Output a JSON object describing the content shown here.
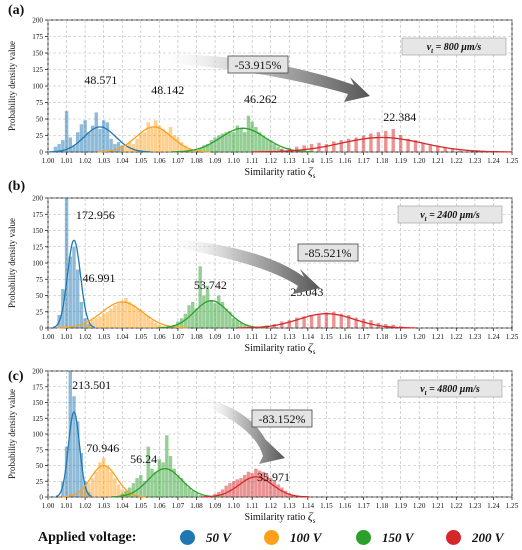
{
  "legend": {
    "title": "Applied voltage:",
    "items": [
      {
        "label": "50 V",
        "color": "#1f77b4"
      },
      {
        "label": "100 V",
        "color": "#ff9f1c"
      },
      {
        "label": "150 V",
        "color": "#2ca02c"
      },
      {
        "label": "200 V",
        "color": "#d62728"
      }
    ]
  },
  "chart_data": [
    {
      "type": "bar",
      "panel_label": "(a)",
      "speed_label": "v_t = 800 μm/s",
      "speed_main": "v",
      "speed_sub": "t",
      "speed_rest": " = 800 μm/s",
      "xlabel": "Similarity ratio ζ_s",
      "xlabel_main": "Similarity ratio ",
      "xlabel_symbol": "ζ",
      "xlabel_sub": "s",
      "ylabel": "Probability density value",
      "xlim": [
        1.0,
        1.25
      ],
      "ylim": [
        0,
        200
      ],
      "grid": true,
      "xticks": [
        "1.00",
        "1.01",
        "1.02",
        "1.03",
        "1.04",
        "1.05",
        "1.06",
        "1.07",
        "1.08",
        "1.09",
        "1.10",
        "1.11",
        "1.12",
        "1.13",
        "1.14",
        "1.15",
        "1.16",
        "1.17",
        "1.18",
        "1.19",
        "1.20",
        "1.21",
        "1.22",
        "1.23",
        "1.24",
        "1.25"
      ],
      "yticks": [
        "0",
        "25",
        "50",
        "75",
        "100",
        "125",
        "150",
        "175",
        "200"
      ],
      "arrow_label": "-53.915%",
      "series": [
        {
          "color": "#1f77b4",
          "peak_label": "48.571",
          "peak_value": 48.571,
          "center": 1.028,
          "sigma": 0.0085,
          "curve_peak": 38,
          "bins": [
            1.004,
            1.006,
            1.008,
            1.01,
            1.012,
            1.014,
            1.016,
            1.018,
            1.02,
            1.022,
            1.024,
            1.026,
            1.028,
            1.03,
            1.032,
            1.034,
            1.036,
            1.038,
            1.04
          ],
          "values": [
            8,
            12,
            18,
            62,
            22,
            10,
            30,
            42,
            48,
            30,
            40,
            60,
            35,
            48,
            45,
            20,
            12,
            15,
            10
          ]
        },
        {
          "color": "#ff9f1c",
          "peak_label": "48.142",
          "peak_value": 48.142,
          "center": 1.057,
          "sigma": 0.0095,
          "curve_peak": 38,
          "bins": [
            1.04,
            1.042,
            1.044,
            1.046,
            1.048,
            1.05,
            1.052,
            1.054,
            1.056,
            1.058,
            1.06,
            1.062,
            1.064,
            1.066,
            1.068,
            1.07,
            1.072,
            1.074,
            1.076
          ],
          "values": [
            5,
            8,
            15,
            12,
            20,
            28,
            30,
            45,
            38,
            48,
            40,
            35,
            30,
            38,
            25,
            22,
            15,
            10,
            6
          ]
        },
        {
          "color": "#2ca02c",
          "peak_label": "46.262",
          "peak_value": 46.262,
          "center": 1.105,
          "sigma": 0.012,
          "curve_peak": 36,
          "bins": [
            1.082,
            1.084,
            1.086,
            1.088,
            1.09,
            1.092,
            1.094,
            1.096,
            1.098,
            1.1,
            1.102,
            1.104,
            1.106,
            1.108,
            1.11,
            1.112,
            1.114,
            1.116,
            1.118,
            1.12,
            1.122,
            1.124,
            1.126
          ],
          "values": [
            6,
            10,
            12,
            18,
            22,
            25,
            28,
            30,
            32,
            30,
            40,
            36,
            30,
            55,
            46,
            38,
            30,
            25,
            20,
            18,
            12,
            8,
            5
          ]
        },
        {
          "color": "#d62728",
          "peak_label": "22.384",
          "peak_value": 22.384,
          "center": 1.18,
          "sigma": 0.022,
          "curve_peak": 22,
          "bins": [
            1.126,
            1.13,
            1.134,
            1.138,
            1.142,
            1.146,
            1.15,
            1.154,
            1.158,
            1.162,
            1.166,
            1.17,
            1.174,
            1.178,
            1.182,
            1.186,
            1.19,
            1.194,
            1.198,
            1.202,
            1.206,
            1.21,
            1.214,
            1.218,
            1.222
          ],
          "values": [
            4,
            6,
            8,
            10,
            12,
            14,
            12,
            16,
            18,
            20,
            22,
            25,
            28,
            30,
            32,
            35,
            26,
            20,
            18,
            14,
            10,
            8,
            6,
            4,
            2
          ]
        }
      ]
    },
    {
      "type": "bar",
      "panel_label": "(b)",
      "speed_label": "v_t = 2400 μm/s",
      "speed_main": "v",
      "speed_sub": "t",
      "speed_rest": " = 2400 μm/s",
      "xlabel": "Similarity ratio ζ_s",
      "xlabel_main": "Similarity ratio ",
      "xlabel_symbol": "ζ",
      "xlabel_sub": "s",
      "ylabel": "Probability density value",
      "xlim": [
        1.0,
        1.25
      ],
      "ylim": [
        0,
        200
      ],
      "grid": true,
      "xticks": [
        "1.00",
        "1.01",
        "1.02",
        "1.03",
        "1.04",
        "1.05",
        "1.06",
        "1.07",
        "1.08",
        "1.09",
        "1.10",
        "1.11",
        "1.12",
        "1.13",
        "1.14",
        "1.15",
        "1.16",
        "1.17",
        "1.18",
        "1.19",
        "1.20",
        "1.21",
        "1.22",
        "1.23",
        "1.24",
        "1.25"
      ],
      "yticks": [
        "0",
        "25",
        "50",
        "75",
        "100",
        "125",
        "150",
        "175",
        "200"
      ],
      "arrow_label": "-85.521%",
      "series": [
        {
          "color": "#1f77b4",
          "peak_label": "172.956",
          "peak_value": 172.956,
          "center": 1.014,
          "sigma": 0.0035,
          "curve_peak": 135,
          "bins": [
            1.006,
            1.008,
            1.01,
            1.012,
            1.014,
            1.016,
            1.018,
            1.02,
            1.022
          ],
          "values": [
            20,
            60,
            200,
            110,
            125,
            90,
            40,
            15,
            6
          ]
        },
        {
          "color": "#ff9f1c",
          "peak_label": "46.991",
          "peak_value": 46.991,
          "center": 1.04,
          "sigma": 0.011,
          "curve_peak": 40,
          "bins": [
            1.02,
            1.022,
            1.024,
            1.026,
            1.028,
            1.03,
            1.032,
            1.034,
            1.036,
            1.038,
            1.04,
            1.042,
            1.044,
            1.046,
            1.048,
            1.05,
            1.052,
            1.054,
            1.056,
            1.058,
            1.06,
            1.062
          ],
          "values": [
            5,
            8,
            12,
            15,
            18,
            22,
            25,
            30,
            35,
            38,
            42,
            46,
            40,
            36,
            30,
            28,
            22,
            18,
            12,
            8,
            5,
            3
          ]
        },
        {
          "color": "#2ca02c",
          "peak_label": "53.742",
          "peak_value": 53.742,
          "center": 1.088,
          "sigma": 0.009,
          "curve_peak": 42,
          "bins": [
            1.068,
            1.07,
            1.072,
            1.074,
            1.076,
            1.078,
            1.08,
            1.082,
            1.084,
            1.086,
            1.088,
            1.09,
            1.092,
            1.094,
            1.096,
            1.098,
            1.1,
            1.102,
            1.104,
            1.106,
            1.108
          ],
          "values": [
            5,
            10,
            15,
            22,
            35,
            40,
            30,
            95,
            50,
            65,
            42,
            38,
            50,
            40,
            30,
            25,
            15,
            12,
            8,
            5,
            3
          ]
        },
        {
          "color": "#d62728",
          "peak_label": "25.043",
          "peak_value": 25.043,
          "center": 1.15,
          "sigma": 0.015,
          "curve_peak": 22,
          "bins": [
            1.118,
            1.122,
            1.126,
            1.13,
            1.134,
            1.138,
            1.142,
            1.146,
            1.15,
            1.154,
            1.158,
            1.162,
            1.166,
            1.17,
            1.174,
            1.178,
            1.182,
            1.186,
            1.19
          ],
          "values": [
            4,
            6,
            10,
            12,
            16,
            18,
            20,
            22,
            24,
            25,
            22,
            20,
            16,
            14,
            12,
            8,
            6,
            5,
            3
          ]
        }
      ]
    },
    {
      "type": "bar",
      "panel_label": "(c)",
      "speed_label": "v_t = 4800 μm/s",
      "speed_main": "v",
      "speed_sub": "t",
      "speed_rest": " = 4800 μm/s",
      "xlabel": "Similarity ratio ζ_s",
      "xlabel_main": "Similarity ratio ",
      "xlabel_symbol": "ζ",
      "xlabel_sub": "s",
      "ylabel": "Probability density value",
      "xlim": [
        1.0,
        1.25
      ],
      "ylim": [
        0,
        200
      ],
      "grid": true,
      "xticks": [
        "1.00",
        "1.01",
        "1.02",
        "1.03",
        "1.04",
        "1.05",
        "1.06",
        "1.07",
        "1.08",
        "1.09",
        "1.10",
        "1.11",
        "1.12",
        "1.13",
        "1.14",
        "1.15",
        "1.16",
        "1.17",
        "1.18",
        "1.19",
        "1.20",
        "1.21",
        "1.22",
        "1.23",
        "1.24",
        "1.25"
      ],
      "yticks": [
        "0",
        "25",
        "50",
        "75",
        "100",
        "125",
        "150",
        "175",
        "200"
      ],
      "arrow_label": "-83.152%",
      "series": [
        {
          "color": "#1f77b4",
          "peak_label": "213.501",
          "peak_value": 213.501,
          "center": 1.014,
          "sigma": 0.003,
          "curve_peak": 135,
          "bins": [
            1.008,
            1.01,
            1.012,
            1.014,
            1.016,
            1.018,
            1.02,
            1.022
          ],
          "values": [
            25,
            80,
            200,
            160,
            120,
            70,
            25,
            8
          ]
        },
        {
          "color": "#ff9f1c",
          "peak_label": "70.946",
          "peak_value": 70.946,
          "center": 1.03,
          "sigma": 0.007,
          "curve_peak": 50,
          "bins": [
            1.018,
            1.02,
            1.022,
            1.024,
            1.026,
            1.028,
            1.03,
            1.032,
            1.034,
            1.036,
            1.038,
            1.04,
            1.042,
            1.044
          ],
          "values": [
            8,
            15,
            22,
            30,
            40,
            55,
            62,
            50,
            40,
            30,
            20,
            12,
            8,
            4
          ]
        },
        {
          "color": "#2ca02c",
          "peak_label": "56.24",
          "peak_value": 56.24,
          "center": 1.063,
          "sigma": 0.009,
          "curve_peak": 45,
          "bins": [
            1.04,
            1.042,
            1.044,
            1.046,
            1.048,
            1.05,
            1.052,
            1.054,
            1.056,
            1.058,
            1.06,
            1.062,
            1.064,
            1.066,
            1.068,
            1.07,
            1.072,
            1.074,
            1.076,
            1.078,
            1.08,
            1.082
          ],
          "values": [
            5,
            10,
            15,
            22,
            30,
            35,
            25,
            80,
            45,
            40,
            60,
            55,
            98,
            65,
            45,
            35,
            30,
            22,
            15,
            10,
            6,
            3
          ]
        },
        {
          "color": "#d62728",
          "peak_label": "35.971",
          "peak_value": 35.971,
          "center": 1.112,
          "sigma": 0.009,
          "curve_peak": 32,
          "bins": [
            1.09,
            1.092,
            1.094,
            1.096,
            1.098,
            1.1,
            1.102,
            1.104,
            1.106,
            1.108,
            1.11,
            1.112,
            1.114,
            1.116,
            1.118,
            1.12,
            1.122,
            1.124,
            1.126,
            1.128,
            1.13,
            1.132
          ],
          "values": [
            5,
            8,
            12,
            18,
            22,
            25,
            28,
            30,
            35,
            40,
            38,
            45,
            42,
            40,
            35,
            30,
            25,
            20,
            15,
            10,
            6,
            3
          ]
        }
      ]
    }
  ]
}
